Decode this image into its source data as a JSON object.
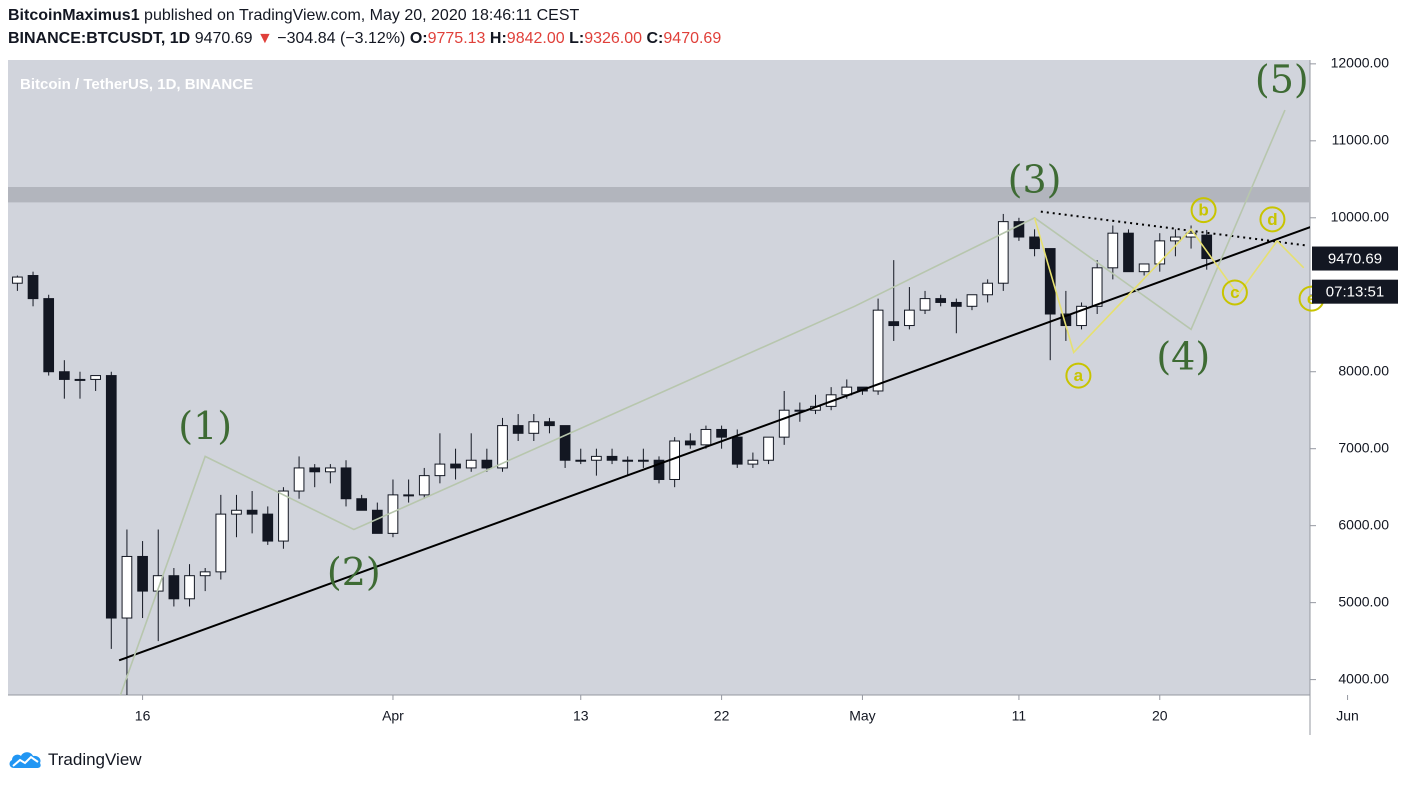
{
  "header": {
    "author": "BitcoinMaximus1",
    "published_text": "published on TradingView.com, May 20, 2020 18:46:11 CEST",
    "symbol": "BINANCE:BTCUSDT, 1D",
    "last": "9470.69",
    "change_arrow": "▼",
    "change": "−304.84 (−3.12%)",
    "o_label": "O:",
    "o_value": "9775.13",
    "h_label": "H:",
    "h_value": "9842.00",
    "l_label": "L:",
    "l_value": "9326.00",
    "c_label": "C:",
    "c_value": "9470.69"
  },
  "footer": {
    "brand": "TradingView",
    "logo_icon": "tradingview-cloud-icon"
  },
  "chart_data": {
    "type": "candlestick",
    "title": "Bitcoin / TetherUS, 1D, BINANCE",
    "y_range": [
      3800,
      12050
    ],
    "x_range_days": [
      -3.6,
      79.6
    ],
    "x_ticks": [
      {
        "label": "16",
        "day": 5
      },
      {
        "label": "Apr",
        "day": 21
      },
      {
        "label": "13",
        "day": 33
      },
      {
        "label": "22",
        "day": 42
      },
      {
        "label": "May",
        "day": 51
      },
      {
        "label": "11",
        "day": 61
      },
      {
        "label": "20",
        "day": 70
      },
      {
        "label": "Jun",
        "day": 82
      }
    ],
    "y_ticks": [
      "4000.00",
      "5000.00",
      "6000.00",
      "7000.00",
      "8000.00",
      "9000.00",
      "10000.00",
      "11000.00",
      "12000.00"
    ],
    "price_label": {
      "value": 9470.69,
      "text": "9470.69"
    },
    "countdown_label": {
      "value": 9040,
      "text": "07:13:51"
    },
    "resistance_zone": [
      10200,
      10400
    ],
    "candles": [
      {
        "d": -4,
        "o": 9350,
        "h": 9450,
        "l": 9050,
        "c": 9100
      },
      {
        "d": -3,
        "o": 9150,
        "h": 9250,
        "l": 9050,
        "c": 9230
      },
      {
        "d": -2,
        "o": 9250,
        "h": 9300,
        "l": 8850,
        "c": 8950
      },
      {
        "d": -1,
        "o": 8950,
        "h": 9000,
        "l": 7950,
        "c": 8000
      },
      {
        "d": 0,
        "o": 8000,
        "h": 8150,
        "l": 7650,
        "c": 7900
      },
      {
        "d": 1,
        "o": 7900,
        "h": 8000,
        "l": 7650,
        "c": 7900
      },
      {
        "d": 2,
        "o": 7900,
        "h": 7950,
        "l": 7750,
        "c": 7950
      },
      {
        "d": 3,
        "o": 7950,
        "h": 8000,
        "l": 4400,
        "c": 4800
      },
      {
        "d": 4,
        "o": 4800,
        "h": 5950,
        "l": 3800,
        "c": 5600
      },
      {
        "d": 5,
        "o": 5600,
        "h": 5800,
        "l": 4800,
        "c": 5150
      },
      {
        "d": 6,
        "o": 5150,
        "h": 5950,
        "l": 4500,
        "c": 5350
      },
      {
        "d": 7,
        "o": 5350,
        "h": 5450,
        "l": 4950,
        "c": 5050
      },
      {
        "d": 8,
        "o": 5050,
        "h": 5500,
        "l": 4950,
        "c": 5350
      },
      {
        "d": 9,
        "o": 5350,
        "h": 5450,
        "l": 5150,
        "c": 5400
      },
      {
        "d": 10,
        "o": 5400,
        "h": 6400,
        "l": 5300,
        "c": 6150
      },
      {
        "d": 11,
        "o": 6150,
        "h": 6400,
        "l": 5850,
        "c": 6200
      },
      {
        "d": 12,
        "o": 6200,
        "h": 6450,
        "l": 5900,
        "c": 6150
      },
      {
        "d": 13,
        "o": 6150,
        "h": 6250,
        "l": 5750,
        "c": 5800
      },
      {
        "d": 14,
        "o": 5800,
        "h": 6500,
        "l": 5700,
        "c": 6450
      },
      {
        "d": 15,
        "o": 6450,
        "h": 6900,
        "l": 6350,
        "c": 6750
      },
      {
        "d": 16,
        "o": 6750,
        "h": 6800,
        "l": 6500,
        "c": 6700
      },
      {
        "d": 17,
        "o": 6700,
        "h": 6800,
        "l": 6550,
        "c": 6750
      },
      {
        "d": 18,
        "o": 6750,
        "h": 6850,
        "l": 6250,
        "c": 6350
      },
      {
        "d": 19,
        "o": 6350,
        "h": 6400,
        "l": 6200,
        "c": 6200
      },
      {
        "d": 20,
        "o": 6200,
        "h": 6300,
        "l": 5950,
        "c": 5900
      },
      {
        "d": 21,
        "o": 5900,
        "h": 6600,
        "l": 5850,
        "c": 6400
      },
      {
        "d": 22,
        "o": 6400,
        "h": 6600,
        "l": 6300,
        "c": 6400
      },
      {
        "d": 23,
        "o": 6400,
        "h": 6750,
        "l": 6350,
        "c": 6650
      },
      {
        "d": 24,
        "o": 6650,
        "h": 7200,
        "l": 6550,
        "c": 6800
      },
      {
        "d": 25,
        "o": 6800,
        "h": 7000,
        "l": 6600,
        "c": 6750
      },
      {
        "d": 26,
        "o": 6750,
        "h": 7200,
        "l": 6700,
        "c": 6850
      },
      {
        "d": 27,
        "o": 6850,
        "h": 7000,
        "l": 6700,
        "c": 6750
      },
      {
        "d": 28,
        "o": 6750,
        "h": 7400,
        "l": 6700,
        "c": 7300
      },
      {
        "d": 29,
        "o": 7300,
        "h": 7450,
        "l": 7100,
        "c": 7200
      },
      {
        "d": 30,
        "o": 7200,
        "h": 7450,
        "l": 7100,
        "c": 7350
      },
      {
        "d": 31,
        "o": 7350,
        "h": 7400,
        "l": 7200,
        "c": 7300
      },
      {
        "d": 32,
        "o": 7300,
        "h": 7300,
        "l": 6750,
        "c": 6850
      },
      {
        "d": 33,
        "o": 6850,
        "h": 7000,
        "l": 6800,
        "c": 6850
      },
      {
        "d": 34,
        "o": 6850,
        "h": 7000,
        "l": 6650,
        "c": 6900
      },
      {
        "d": 35,
        "o": 6900,
        "h": 7000,
        "l": 6800,
        "c": 6850
      },
      {
        "d": 36,
        "o": 6850,
        "h": 6900,
        "l": 6650,
        "c": 6850
      },
      {
        "d": 37,
        "o": 6850,
        "h": 7000,
        "l": 6750,
        "c": 6850
      },
      {
        "d": 38,
        "o": 6850,
        "h": 6900,
        "l": 6550,
        "c": 6600
      },
      {
        "d": 39,
        "o": 6600,
        "h": 7150,
        "l": 6500,
        "c": 7100
      },
      {
        "d": 40,
        "o": 7100,
        "h": 7200,
        "l": 7000,
        "c": 7050
      },
      {
        "d": 41,
        "o": 7050,
        "h": 7300,
        "l": 7000,
        "c": 7250
      },
      {
        "d": 42,
        "o": 7250,
        "h": 7300,
        "l": 7000,
        "c": 7150
      },
      {
        "d": 43,
        "o": 7150,
        "h": 7250,
        "l": 6750,
        "c": 6800
      },
      {
        "d": 44,
        "o": 6800,
        "h": 6950,
        "l": 6750,
        "c": 6850
      },
      {
        "d": 45,
        "o": 6850,
        "h": 7150,
        "l": 6800,
        "c": 7150
      },
      {
        "d": 46,
        "o": 7150,
        "h": 7750,
        "l": 7050,
        "c": 7500
      },
      {
        "d": 47,
        "o": 7500,
        "h": 7600,
        "l": 7350,
        "c": 7500
      },
      {
        "d": 48,
        "o": 7500,
        "h": 7700,
        "l": 7450,
        "c": 7550
      },
      {
        "d": 49,
        "o": 7550,
        "h": 7800,
        "l": 7500,
        "c": 7700
      },
      {
        "d": 50,
        "o": 7700,
        "h": 7900,
        "l": 7650,
        "c": 7800
      },
      {
        "d": 51,
        "o": 7800,
        "h": 7800,
        "l": 7700,
        "c": 7750
      },
      {
        "d": 52,
        "o": 7750,
        "h": 8950,
        "l": 7700,
        "c": 8800
      },
      {
        "d": 53,
        "o": 8650,
        "h": 9450,
        "l": 8400,
        "c": 8600
      },
      {
        "d": 54,
        "o": 8600,
        "h": 9100,
        "l": 8550,
        "c": 8800
      },
      {
        "d": 55,
        "o": 8800,
        "h": 9050,
        "l": 8750,
        "c": 8950
      },
      {
        "d": 56,
        "o": 8950,
        "h": 9000,
        "l": 8850,
        "c": 8900
      },
      {
        "d": 57,
        "o": 8900,
        "h": 8950,
        "l": 8500,
        "c": 8850
      },
      {
        "d": 58,
        "o": 8850,
        "h": 9000,
        "l": 8800,
        "c": 9000
      },
      {
        "d": 59,
        "o": 9000,
        "h": 9200,
        "l": 8900,
        "c": 9150
      },
      {
        "d": 60,
        "o": 9150,
        "h": 10050,
        "l": 9050,
        "c": 9950
      },
      {
        "d": 61,
        "o": 9950,
        "h": 10000,
        "l": 9700,
        "c": 9750
      },
      {
        "d": 62,
        "o": 9750,
        "h": 9850,
        "l": 9500,
        "c": 9600
      },
      {
        "d": 63,
        "o": 9600,
        "h": 9600,
        "l": 8150,
        "c": 8750
      },
      {
        "d": 64,
        "o": 8750,
        "h": 9050,
        "l": 8400,
        "c": 8600
      },
      {
        "d": 65,
        "o": 8600,
        "h": 8900,
        "l": 8550,
        "c": 8850
      },
      {
        "d": 66,
        "o": 8850,
        "h": 9450,
        "l": 8750,
        "c": 9350
      },
      {
        "d": 67,
        "o": 9350,
        "h": 9900,
        "l": 9200,
        "c": 9800
      },
      {
        "d": 68,
        "o": 9800,
        "h": 9850,
        "l": 9300,
        "c": 9300
      },
      {
        "d": 69,
        "o": 9300,
        "h": 9400,
        "l": 9250,
        "c": 9400
      },
      {
        "d": 70,
        "o": 9400,
        "h": 9800,
        "l": 9300,
        "c": 9700
      },
      {
        "d": 71,
        "o": 9700,
        "h": 9850,
        "l": 9500,
        "c": 9750
      },
      {
        "d": 72,
        "o": 9750,
        "h": 9900,
        "l": 9600,
        "c": 9800
      },
      {
        "d": 73,
        "o": 9775,
        "h": 9842,
        "l": 9326,
        "c": 9470.69
      }
    ],
    "lines": [
      {
        "name": "support-trendline",
        "color": "#000000",
        "points": [
          [
            3.5,
            4250
          ],
          [
            80.3,
            9930
          ]
        ]
      },
      {
        "name": "triangle-upper-line",
        "color": "#000000",
        "dashed": true,
        "points": [
          [
            62.4,
            10080
          ],
          [
            79.4,
            9640
          ]
        ]
      },
      {
        "name": "wave-path",
        "color": "#b7c6ad",
        "points": [
          [
            3.5,
            3750
          ],
          [
            9,
            6900
          ],
          [
            18.5,
            5950
          ],
          [
            50.5,
            8850
          ],
          [
            62,
            10000
          ],
          [
            72,
            8550
          ],
          [
            78,
            11400
          ]
        ]
      },
      {
        "name": "triangle-path",
        "color": "#e6e070",
        "points": [
          [
            62,
            10000
          ],
          [
            64.5,
            8250
          ],
          [
            72,
            9850
          ],
          [
            75,
            9000
          ],
          [
            77.5,
            9700
          ],
          [
            79.2,
            9350
          ]
        ]
      }
    ],
    "wave_labels": [
      {
        "text": "(1)",
        "d": 9,
        "v": 7250
      },
      {
        "text": "(2)",
        "d": 18.5,
        "v": 5350
      },
      {
        "text": "(3)",
        "d": 62,
        "v": 10450
      },
      {
        "text": "(4)",
        "d": 71.5,
        "v": 8150
      },
      {
        "text": "(5)",
        "d": 77.8,
        "v": 11750
      }
    ],
    "sub_labels": [
      {
        "text": "a",
        "d": 64.8,
        "v": 7950
      },
      {
        "text": "b",
        "d": 72.8,
        "v": 10100
      },
      {
        "text": "c",
        "d": 74.8,
        "v": 9030
      },
      {
        "text": "d",
        "d": 77.2,
        "v": 9980
      },
      {
        "text": "e",
        "d": 79.7,
        "v": 8950
      }
    ],
    "colors": {
      "background": "#d1d4dc",
      "up_body": "#ffffff",
      "down_body": "#131722",
      "wave_label": "#3e6b34",
      "sub_label": "#c8c400",
      "resistance": "#b2b5bd"
    }
  }
}
